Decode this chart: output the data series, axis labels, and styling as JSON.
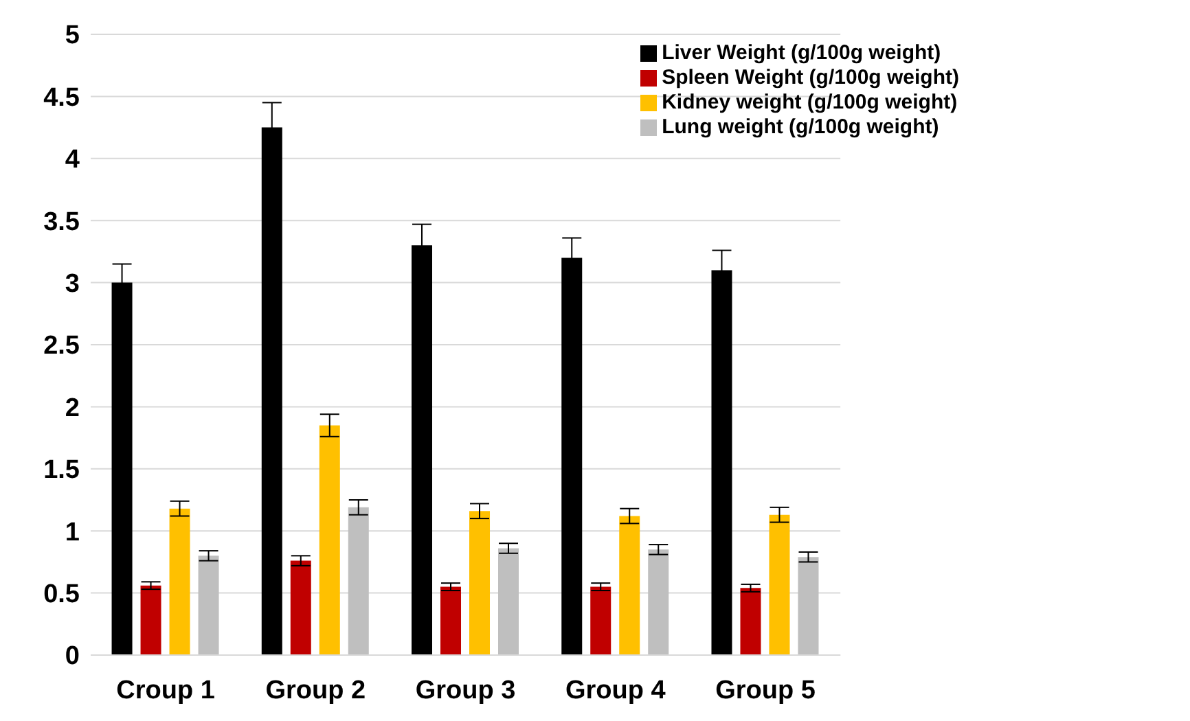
{
  "chart_data": {
    "type": "bar",
    "categories": [
      "Croup 1",
      "Group 2",
      "Group 3",
      "Group 4",
      "Group 5"
    ],
    "series": [
      {
        "name": "Liver Weight (g/100g weight)",
        "color": "#000000",
        "values": [
          3.0,
          4.25,
          3.3,
          3.2,
          3.1
        ],
        "errors": [
          0.15,
          0.2,
          0.17,
          0.16,
          0.16
        ]
      },
      {
        "name": "Spleen Weight (g/100g weight)",
        "color": "#c00000",
        "values": [
          0.56,
          0.76,
          0.55,
          0.55,
          0.54
        ],
        "errors": [
          0.03,
          0.04,
          0.03,
          0.03,
          0.03
        ]
      },
      {
        "name": "Kidney weight (g/100g weight)",
        "color": "#ffc000",
        "values": [
          1.18,
          1.85,
          1.16,
          1.12,
          1.13
        ],
        "errors": [
          0.06,
          0.09,
          0.06,
          0.06,
          0.06
        ]
      },
      {
        "name": "Lung weight (g/100g weight)",
        "color": "#bfbfbf",
        "values": [
          0.8,
          1.19,
          0.86,
          0.85,
          0.79
        ],
        "errors": [
          0.04,
          0.06,
          0.04,
          0.04,
          0.04
        ]
      }
    ],
    "ylim": [
      0,
      5
    ],
    "yticks": [
      0,
      0.5,
      1,
      1.5,
      2,
      2.5,
      3,
      3.5,
      4,
      4.5,
      5
    ],
    "grid": "y",
    "legend": "top right"
  }
}
